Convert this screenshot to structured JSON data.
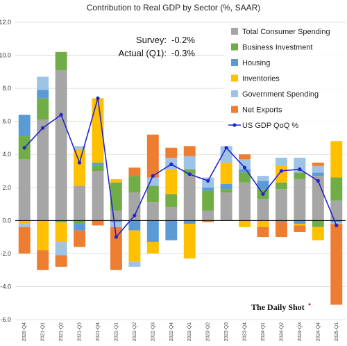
{
  "chart_data": {
    "type": "bar",
    "stacked": true,
    "title": "Contribution to Real GDP by Sector (%, SAAR)",
    "xlabel": "",
    "ylabel": "",
    "ylim": [
      -6,
      12
    ],
    "yticks": [
      -6,
      -4,
      -2,
      0,
      2,
      4,
      6,
      8,
      10,
      12
    ],
    "ytick_labels": [
      "-6.0",
      "-4.0",
      "-2.0",
      "0.0",
      "2.0",
      "4.0",
      "6.0",
      "8.0",
      "10.0",
      "12.0"
    ],
    "grid": true,
    "legend_position": "top-right",
    "categories": [
      "2020-Q4",
      "2021-Q1",
      "2021-Q2",
      "2021-Q3",
      "2021-Q4",
      "2022-Q1",
      "2022-Q2",
      "2022-Q3",
      "2022-Q4",
      "2023-Q1",
      "2023-Q2",
      "2023-Q3",
      "2023-Q4",
      "2024-Q1",
      "2024-Q2",
      "2024-Q3",
      "2024-Q4",
      "2025-Q1"
    ],
    "series": [
      {
        "name": "Total Consumer Spending",
        "color": "#a6a6a6",
        "values": [
          3.7,
          6.1,
          9.1,
          2.1,
          3.0,
          0.6,
          1.7,
          1.1,
          0.8,
          2.8,
          0.6,
          1.7,
          2.3,
          1.3,
          1.9,
          2.5,
          2.7,
          1.2
        ]
      },
      {
        "name": "Business Investment",
        "color": "#70ad47",
        "values": [
          1.4,
          1.3,
          1.1,
          -0.2,
          0.3,
          1.7,
          1.0,
          1.0,
          0.8,
          0.3,
          1.2,
          0.2,
          0.6,
          0.6,
          0.4,
          0.4,
          -0.4,
          1.4
        ]
      },
      {
        "name": "Housing",
        "color": "#5b9bd5",
        "values": [
          1.3,
          0.5,
          -0.1,
          -0.4,
          0.2,
          -0.1,
          -0.6,
          -1.3,
          -1.2,
          -0.2,
          0.2,
          0.3,
          0.2,
          0.5,
          -0.1,
          -0.2,
          0.2,
          -0.1
        ]
      },
      {
        "name": "Inventories",
        "color": "#ffc000",
        "values": [
          -0.2,
          -1.8,
          -1.2,
          2.2,
          3.9,
          0.2,
          -1.9,
          -0.7,
          1.5,
          -2.1,
          0.0,
          1.3,
          -0.4,
          -0.4,
          1.0,
          -0.1,
          -0.8,
          2.2
        ]
      },
      {
        "name": "Government Spending",
        "color": "#9dc3e6",
        "values": [
          -0.2,
          0.8,
          -0.8,
          0.2,
          0.0,
          -0.3,
          -0.3,
          0.5,
          0.7,
          0.8,
          0.6,
          1.0,
          0.6,
          0.3,
          0.5,
          0.9,
          0.4,
          -0.1
        ]
      },
      {
        "name": "Net Exports",
        "color": "#ed7d31",
        "values": [
          -1.6,
          -1.2,
          -0.7,
          -1.0,
          -0.3,
          -2.6,
          0.5,
          2.6,
          0.6,
          0.6,
          -0.1,
          0.0,
          0.3,
          -0.6,
          -0.9,
          -0.4,
          0.2,
          -4.9
        ]
      }
    ],
    "line_series": {
      "name": "US GDP QoQ %",
      "color": "#2323cc",
      "values": [
        4.4,
        5.6,
        6.4,
        3.5,
        7.4,
        -1.0,
        0.3,
        2.7,
        3.4,
        2.8,
        2.4,
        4.4,
        3.2,
        1.6,
        3.0,
        3.1,
        2.4,
        -0.3
      ]
    },
    "annotations": {
      "survey_label": "Survey:",
      "survey_value": "-0.2%",
      "actual_label": "Actual (Q1):",
      "actual_value": "-0.3%"
    },
    "source": "The Daily Shot"
  }
}
